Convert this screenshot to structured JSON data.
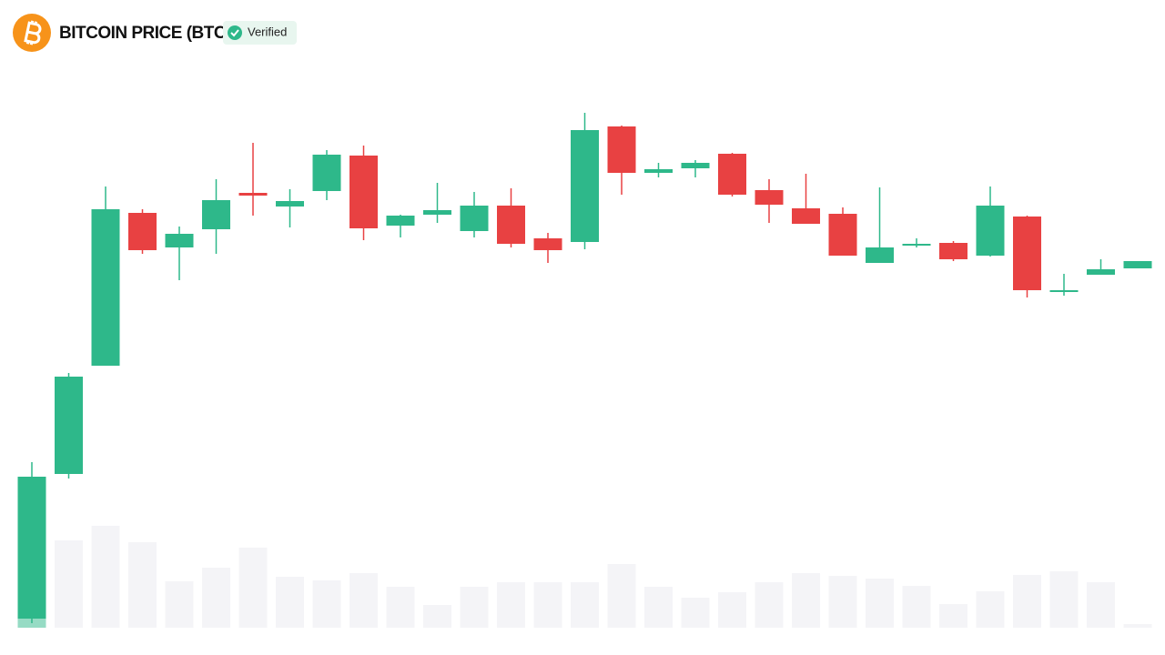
{
  "chart_data": {
    "type": "candlestick",
    "title": "BITCOIN PRICE (BTC)",
    "badge": "Verified",
    "open": [
      20,
      179,
      298,
      466,
      428,
      448,
      488,
      473,
      490,
      529,
      452,
      464,
      446,
      474,
      438,
      434,
      561,
      510,
      515,
      531,
      491,
      471,
      465,
      411,
      431,
      433,
      419,
      462,
      379,
      398,
      405
    ],
    "high": [
      192,
      290,
      495,
      470,
      451,
      503,
      543,
      492,
      535,
      540,
      464,
      499,
      489,
      493,
      444,
      576,
      562,
      521,
      524,
      532,
      503,
      509,
      472,
      494,
      438,
      435,
      495,
      463,
      399,
      415,
      413
    ],
    "low": [
      15,
      174,
      298,
      421,
      392,
      421,
      463,
      450,
      480,
      436,
      439,
      455,
      439,
      428,
      411,
      426,
      486,
      505,
      505,
      484,
      455,
      454,
      419,
      411,
      428,
      413,
      418,
      373,
      375,
      398,
      405
    ],
    "close": [
      176,
      286,
      470,
      425,
      443,
      480,
      485,
      479,
      530,
      449,
      463,
      469,
      474,
      432,
      425,
      557,
      510,
      514,
      521,
      486,
      475,
      454,
      419,
      428,
      432,
      415,
      474,
      381,
      381,
      404,
      413
    ],
    "volume": [
      37,
      96,
      112,
      94,
      51,
      66,
      88,
      56,
      52,
      60,
      45,
      25,
      45,
      50,
      50,
      50,
      70,
      45,
      33,
      39,
      50,
      60,
      57,
      54,
      46,
      26,
      40,
      58,
      62,
      50,
      4
    ],
    "ylim": [
      0,
      700
    ],
    "volume_ylim": [
      0,
      690
    ],
    "up_color": "#2eb88a",
    "down_color": "#e84142",
    "volume_color": "#f4f4f7",
    "selected": 0
  }
}
